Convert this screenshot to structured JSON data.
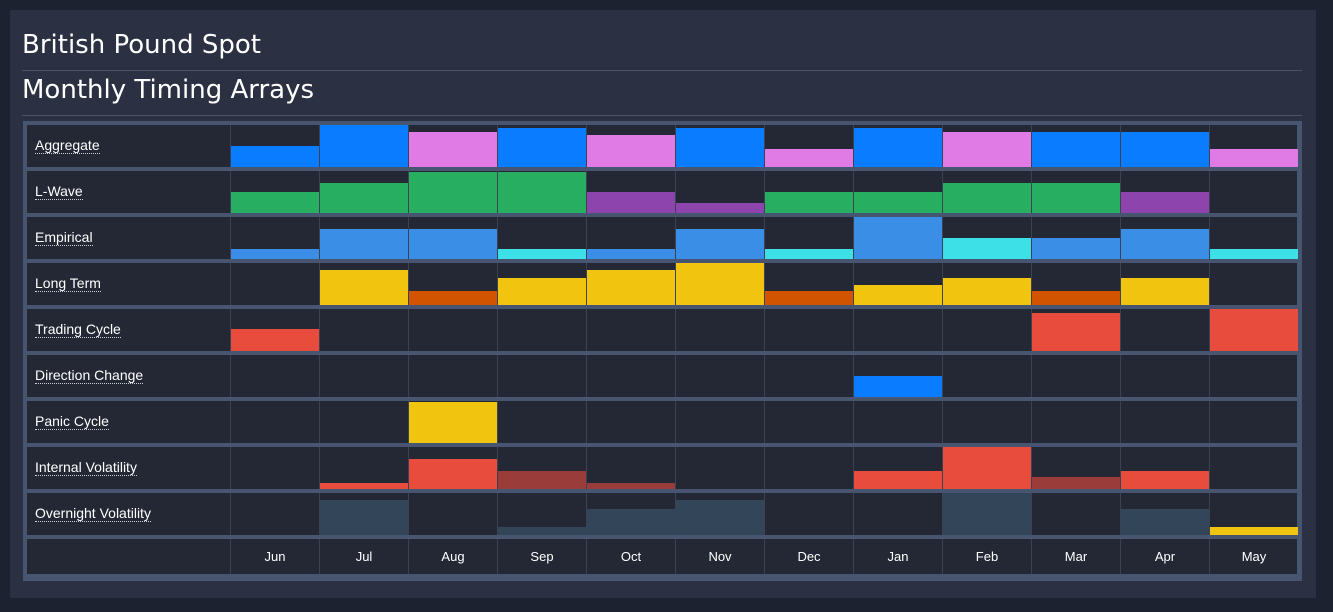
{
  "header": {
    "title": "British Pound Spot",
    "subtitle": "Monthly Timing Arrays"
  },
  "chart_data": {
    "type": "heatmap",
    "title": "Monthly Timing Arrays",
    "categories": [
      "Jun",
      "Jul",
      "Aug",
      "Sep",
      "Oct",
      "Nov",
      "Dec",
      "Jan",
      "Feb",
      "Mar",
      "Apr",
      "May"
    ],
    "value_scale": "fraction of cell height filled (0-1)",
    "series": [
      {
        "name": "Aggregate",
        "values": [
          0.5,
          1.0,
          0.83,
          0.93,
          0.76,
          0.93,
          0.43,
          0.93,
          0.83,
          0.83,
          0.83,
          0.43
        ],
        "colors": [
          "#0a7cff",
          "#0a7cff",
          "#e07be6",
          "#0a7cff",
          "#e07be6",
          "#0a7cff",
          "#e07be6",
          "#0a7cff",
          "#e07be6",
          "#0a7cff",
          "#0a7cff",
          "#e07be6"
        ]
      },
      {
        "name": "L-Wave",
        "values": [
          0.5,
          0.71,
          0.98,
          0.98,
          0.5,
          0.24,
          0.5,
          0.5,
          0.71,
          0.71,
          0.5,
          0
        ],
        "colors": [
          "#27ae60",
          "#27ae60",
          "#27ae60",
          "#27ae60",
          "#8e44ad",
          "#8e44ad",
          "#27ae60",
          "#27ae60",
          "#27ae60",
          "#27ae60",
          "#8e44ad",
          "#27ae60"
        ]
      },
      {
        "name": "Empirical",
        "values": [
          0.24,
          0.71,
          0.71,
          0.24,
          0.24,
          0.71,
          0.24,
          1.0,
          0.5,
          0.5,
          0.71,
          0.24
        ],
        "colors": [
          "#3a8ee6",
          "#3a8ee6",
          "#3a8ee6",
          "#3ee0e8",
          "#3a8ee6",
          "#3a8ee6",
          "#3ee0e8",
          "#3a8ee6",
          "#3ee0e8",
          "#3a8ee6",
          "#3a8ee6",
          "#3ee0e8"
        ]
      },
      {
        "name": "Long Term",
        "values": [
          0,
          0.83,
          0.33,
          0.64,
          0.83,
          1.0,
          0.33,
          0.48,
          0.64,
          0.33,
          0.64,
          0
        ],
        "colors": [
          "#f1c40f",
          "#f1c40f",
          "#d35400",
          "#f1c40f",
          "#f1c40f",
          "#f1c40f",
          "#d35400",
          "#f1c40f",
          "#f1c40f",
          "#d35400",
          "#f1c40f",
          "#f1c40f"
        ]
      },
      {
        "name": "Trading Cycle",
        "values": [
          0.52,
          0,
          0,
          0,
          0,
          0,
          0,
          0,
          0,
          0.9,
          0,
          1.0
        ],
        "colors": [
          "#e74c3c",
          "#e74c3c",
          "#e74c3c",
          "#e74c3c",
          "#e74c3c",
          "#e74c3c",
          "#e74c3c",
          "#e74c3c",
          "#e74c3c",
          "#e74c3c",
          "#e74c3c",
          "#e74c3c"
        ]
      },
      {
        "name": "Direction Change",
        "values": [
          0,
          0,
          0,
          0,
          0,
          0,
          0,
          0.5,
          0,
          0,
          0,
          0
        ],
        "colors": [
          "#0a7cff",
          "#0a7cff",
          "#0a7cff",
          "#0a7cff",
          "#0a7cff",
          "#0a7cff",
          "#0a7cff",
          "#0a7cff",
          "#0a7cff",
          "#0a7cff",
          "#0a7cff",
          "#0a7cff"
        ]
      },
      {
        "name": "Panic Cycle",
        "values": [
          0,
          0,
          0.98,
          0,
          0,
          0,
          0,
          0,
          0,
          0,
          0,
          0
        ],
        "colors": [
          "#f1c40f",
          "#f1c40f",
          "#f1c40f",
          "#f1c40f",
          "#f1c40f",
          "#f1c40f",
          "#f1c40f",
          "#f1c40f",
          "#f1c40f",
          "#f1c40f",
          "#f1c40f",
          "#f1c40f"
        ]
      },
      {
        "name": "Internal Volatility",
        "values": [
          0,
          0.14,
          0.71,
          0.43,
          0.14,
          0,
          0,
          0.43,
          1.0,
          0.29,
          0.43,
          0
        ],
        "colors": [
          "#e74c3c",
          "#e74c3c",
          "#e74c3c",
          "#9a3d3a",
          "#9a3d3a",
          "#e74c3c",
          "#e74c3c",
          "#e74c3c",
          "#e74c3c",
          "#9a3d3a",
          "#e74c3c",
          "#e74c3c"
        ]
      },
      {
        "name": "Overnight Volatility",
        "values": [
          0,
          0.83,
          0,
          0.19,
          0.62,
          0.83,
          0,
          0,
          1.0,
          0,
          0.62,
          0.19
        ],
        "colors": [
          "#334558",
          "#334558",
          "#334558",
          "#334558",
          "#334558",
          "#334558",
          "#334558",
          "#334558",
          "#334558",
          "#334558",
          "#334558",
          "#f1c40f"
        ]
      }
    ]
  }
}
